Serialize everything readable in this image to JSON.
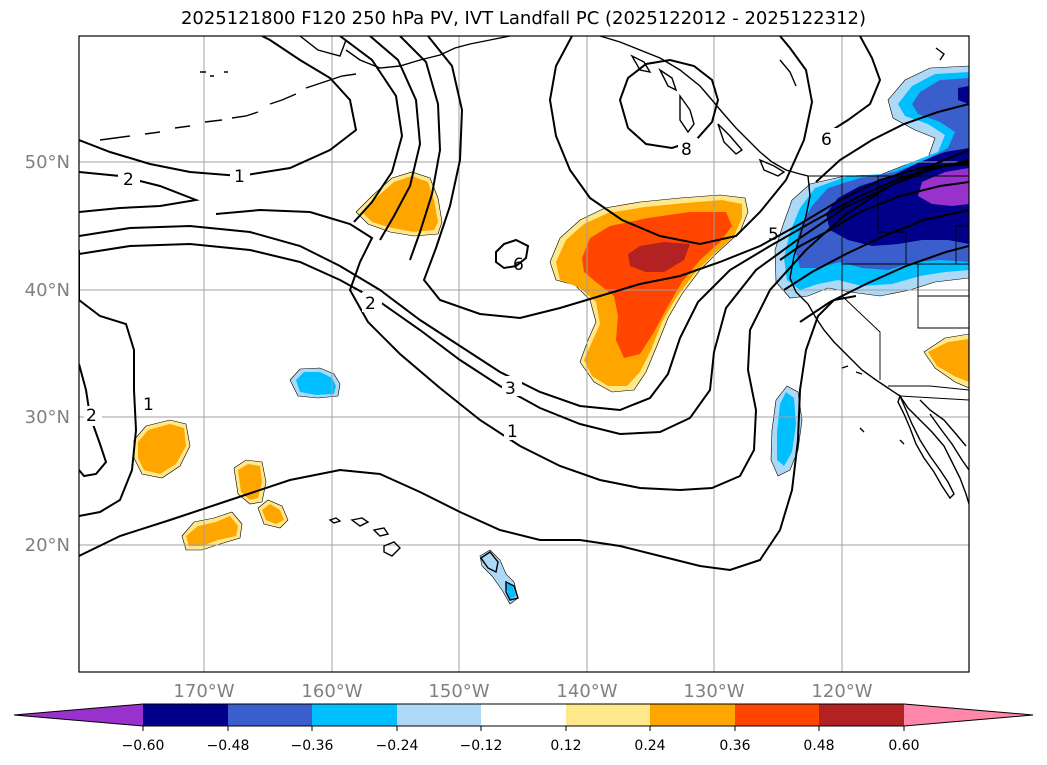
{
  "title": "2025121800 F120 250 hPa PV, IVT Landfall PC (2025122012 - 2025122312)",
  "lat_labels": [
    "50°N",
    "40°N",
    "30°N",
    "20°N"
  ],
  "lon_labels": [
    "170°W",
    "160°W",
    "150°W",
    "140°W",
    "130°W",
    "120°W"
  ],
  "pv_contour_labels": [
    "2",
    "1",
    "2",
    "3",
    "1",
    "8",
    "6",
    "6",
    "5",
    "1",
    "2"
  ],
  "colorbar": {
    "tick_labels": [
      "−0.60",
      "−0.48",
      "−0.36",
      "−0.24",
      "−0.12",
      "0.12",
      "0.24",
      "0.36",
      "0.48",
      "0.60"
    ],
    "colors": [
      "#9932cc",
      "#00008b",
      "#3a5fcd",
      "#00bfff",
      "#add8f6",
      "#ffffff",
      "#ffe88a",
      "#ffa500",
      "#ff4500",
      "#b22222",
      "#ff88aa"
    ]
  },
  "shading_colors": {
    "neg_light": "#add8f6",
    "neg_cyan": "#00bfff",
    "neg_blue": "#3a5fcd",
    "neg_navy": "#00008b",
    "neg_purple": "#9932cc",
    "pos_yellow": "#ffe88a",
    "pos_orange": "#ffa500",
    "pos_red": "#ff4500",
    "pos_darkred": "#b22222"
  }
}
